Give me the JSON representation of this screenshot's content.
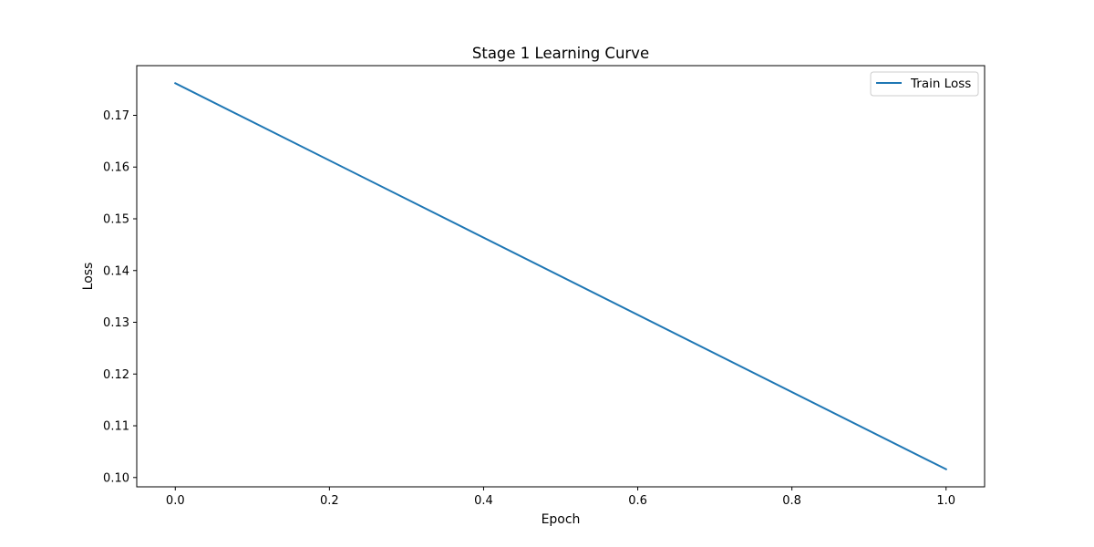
{
  "chart_data": {
    "type": "line",
    "title": "Stage 1 Learning Curve",
    "xlabel": "Epoch",
    "ylabel": "Loss",
    "xlim": [
      -0.05,
      1.05
    ],
    "ylim": [
      0.0982,
      0.1796
    ],
    "xticks": [
      0.0,
      0.2,
      0.4,
      0.6,
      0.8,
      1.0
    ],
    "xtick_labels": [
      "0.0",
      "0.2",
      "0.4",
      "0.6",
      "0.8",
      "1.0"
    ],
    "yticks": [
      0.1,
      0.11,
      0.12,
      0.13,
      0.14,
      0.15,
      0.16,
      0.17
    ],
    "ytick_labels": [
      "0.10",
      "0.11",
      "0.12",
      "0.13",
      "0.14",
      "0.15",
      "0.16",
      "0.17"
    ],
    "grid": false,
    "legend_position": "top-right",
    "series": [
      {
        "name": "Train Loss",
        "color": "#1f77b4",
        "x": [
          0.0,
          1.0
        ],
        "y": [
          0.1762,
          0.1016
        ]
      }
    ]
  }
}
